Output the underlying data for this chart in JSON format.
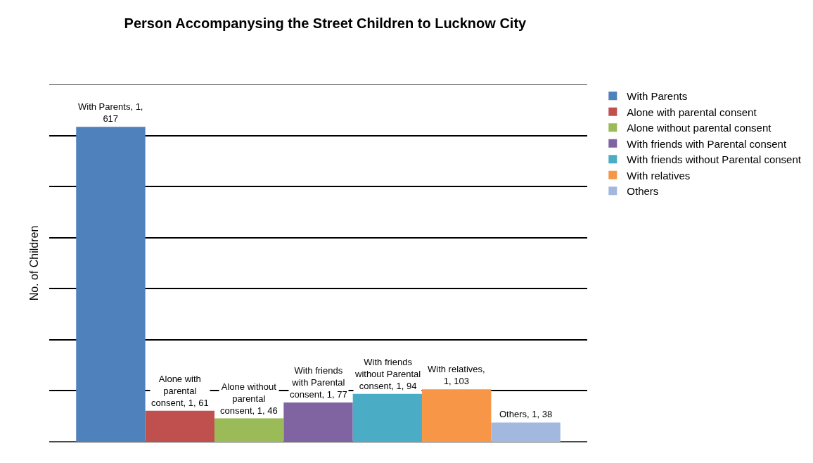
{
  "chart_data": {
    "type": "bar",
    "title": "Person Accompanysing the Street Children to Lucknow City",
    "ylabel": "No. of Children",
    "categories": [
      null
    ],
    "series": [
      {
        "name": "With Parents",
        "color": "#4f81bd",
        "values": [
          617
        ],
        "value_labels": [
          "With Parents, 1, 617"
        ]
      },
      {
        "name": "Alone with parental consent",
        "color": "#c0504d",
        "values": [
          61
        ],
        "value_labels": [
          "Alone with parental consent, 1, 61"
        ]
      },
      {
        "name": "Alone without parental consent",
        "color": "#9bbb59",
        "values": [
          46
        ],
        "value_labels": [
          "Alone without parental consent, 1, 46"
        ]
      },
      {
        "name": "With friends with Parental consent",
        "color": "#8064a2",
        "values": [
          77
        ],
        "value_labels": [
          "With friends with Parental consent, 1, 77"
        ]
      },
      {
        "name": "With friends without Parental consent",
        "color": "#4bacc6",
        "values": [
          94
        ],
        "value_labels": [
          "With friends without Parental consent, 1, 94"
        ]
      },
      {
        "name": "With relatives",
        "color": "#f79646",
        "values": [
          103
        ],
        "value_labels": [
          "With relatives, 1, 103"
        ]
      },
      {
        "name": "Others",
        "color": "#a2b8df",
        "values": [
          38
        ],
        "value_labels": [
          "Others, 1, 38"
        ]
      }
    ],
    "ylim": [
      0,
      700
    ],
    "yticks": [
      {
        "value": 0,
        "label": null
      },
      {
        "value": 100,
        "label": null
      },
      {
        "value": 200,
        "label": null
      },
      {
        "value": 300,
        "label": null
      },
      {
        "value": 400,
        "label": null
      },
      {
        "value": 500,
        "label": null
      },
      {
        "value": 600,
        "label": null
      },
      {
        "value": 700,
        "label": null
      }
    ],
    "grid": "y",
    "legend": "right"
  }
}
